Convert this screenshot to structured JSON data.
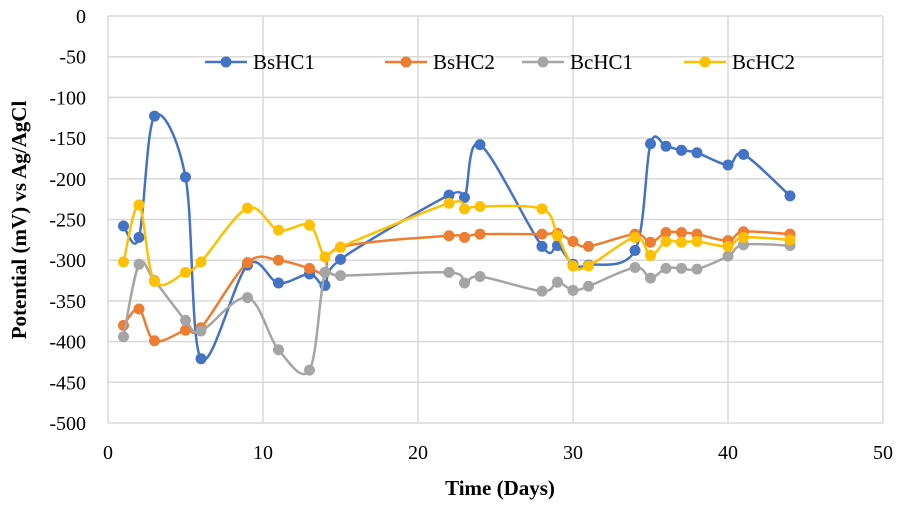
{
  "chart_data": {
    "type": "line",
    "title": "",
    "xlabel": "Time (Days)",
    "ylabel": "Potential (mV) vs Ag/AgCl",
    "xlim": [
      0,
      50
    ],
    "ylim": [
      -500,
      0
    ],
    "xticks": [
      0,
      10,
      20,
      30,
      40,
      50
    ],
    "yticks": [
      0,
      -50,
      -100,
      -150,
      -200,
      -250,
      -300,
      -350,
      -400,
      -450,
      -500
    ],
    "grid": true,
    "smooth": true,
    "legend_position": "top",
    "x": [
      1,
      2,
      3,
      5,
      6,
      9,
      11,
      13,
      14,
      15,
      22,
      23,
      24,
      28,
      29,
      30,
      31,
      34,
      35,
      36,
      37,
      38,
      40,
      41,
      44
    ],
    "series": [
      {
        "name": "BsHC1",
        "color": "#4472C4",
        "values": [
          -258,
          -272,
          -123,
          -198,
          -421,
          -306,
          -328,
          -317,
          -331,
          -299,
          -220,
          -223,
          -158,
          -283,
          -282,
          -305,
          -306,
          -288,
          -157,
          -160,
          -165,
          -168,
          -183,
          -170,
          -221
        ]
      },
      {
        "name": "BsHC2",
        "color": "#ED7D31",
        "values": [
          -380,
          -360,
          -399,
          -386,
          -383,
          -303,
          -300,
          -310,
          -315,
          -284,
          -270,
          -272,
          -268,
          -268,
          -267,
          -277,
          -283,
          -268,
          -278,
          -266,
          -266,
          -268,
          -276,
          -265,
          -268
        ]
      },
      {
        "name": "BcHC1",
        "color": "#A5A5A5",
        "values": [
          -394,
          -305,
          -325,
          -374,
          -387,
          -346,
          -410,
          -435,
          -315,
          -319,
          -315,
          -328,
          -320,
          -338,
          -327,
          -337,
          -332,
          -309,
          -322,
          -310,
          -310,
          -311,
          -295,
          -281,
          -282
        ]
      },
      {
        "name": "BcHC2",
        "color": "#FFC000",
        "values": [
          -302,
          -232,
          -326,
          -315,
          -302,
          -236,
          -263,
          -257,
          -296,
          -284,
          -230,
          -237,
          -234,
          -237,
          -270,
          -307,
          -307,
          -272,
          -294,
          -277,
          -278,
          -277,
          -283,
          -272,
          -275
        ]
      }
    ]
  }
}
